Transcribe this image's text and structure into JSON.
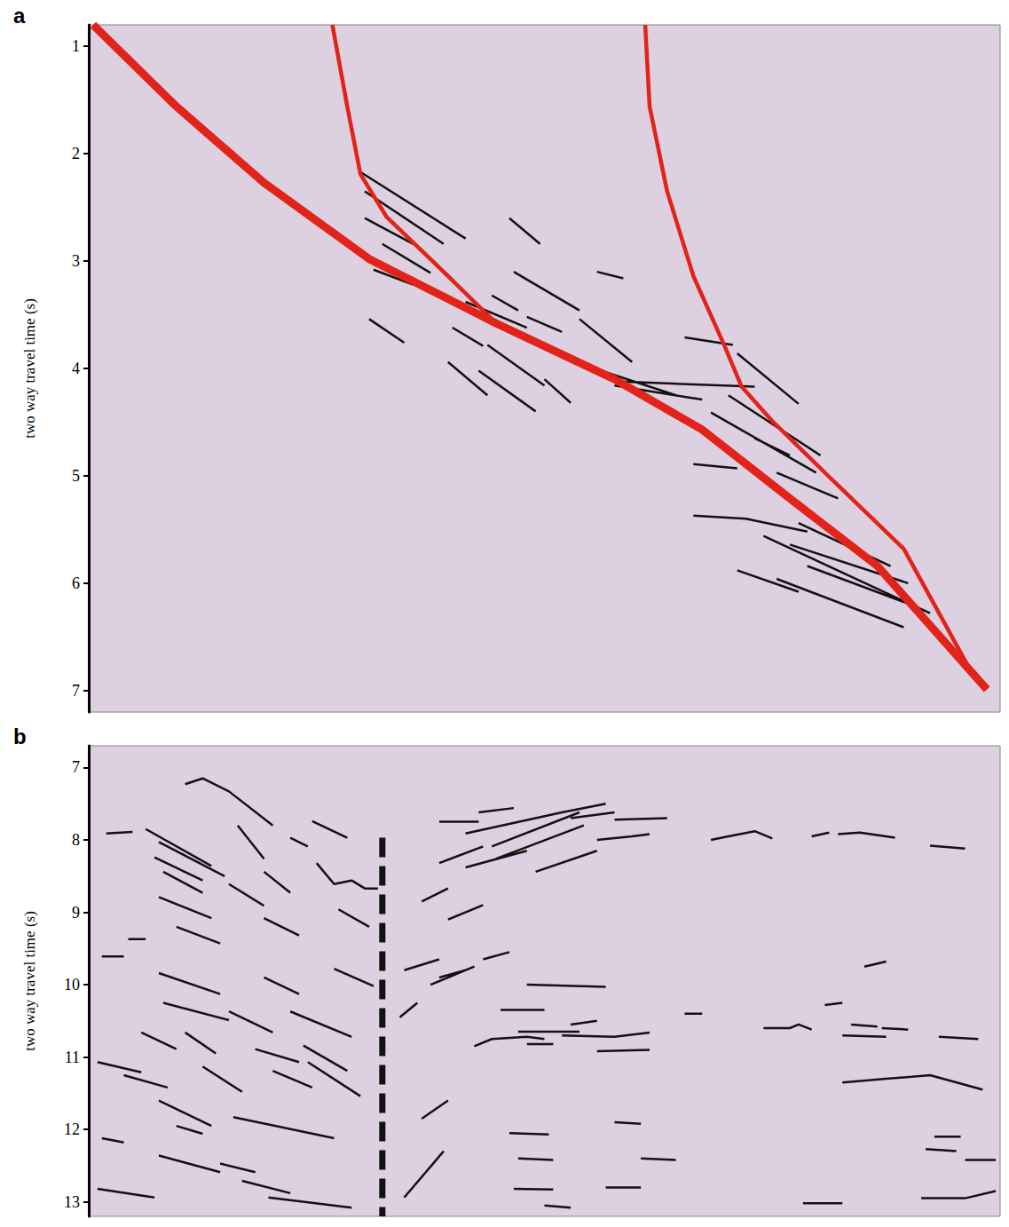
{
  "chart_data": [
    {
      "type": "line",
      "title": "a",
      "y_label": "two way travel time (s)",
      "xlim": [
        0,
        1040
      ],
      "ylim": [
        7.2,
        0.8
      ],
      "yticks": [
        1,
        2,
        3,
        4,
        5,
        6,
        7
      ],
      "grid": false,
      "tick_labels": "y",
      "series": [
        {
          "color": "#e2231a",
          "line_style": "solid",
          "x": [
            5,
            100,
            200,
            320,
            465,
            600,
            700,
            800,
            900,
            1025
          ],
          "values": [
            0.8,
            1.56,
            2.27,
            2.98,
            3.58,
            4.1,
            4.57,
            5.21,
            5.84,
            6.99
          ]
        },
        {
          "color": "#e2231a",
          "line_style": "solid",
          "x": [
            278,
            295,
            310,
            340,
            400,
            465,
            500
          ],
          "values": [
            0.8,
            1.56,
            2.19,
            2.59,
            3.06,
            3.58,
            3.7
          ]
        },
        {
          "color": "#e2231a",
          "line_style": "solid",
          "x": [
            635,
            640,
            660,
            690,
            725,
            745,
            780,
            850,
            930,
            1010
          ],
          "values": [
            0.8,
            1.56,
            2.35,
            3.14,
            3.78,
            4.17,
            4.49,
            5.05,
            5.68,
            6.87
          ]
        },
        {
          "color": "#111111",
          "line_style": "solid",
          "x": [
            310,
            430,
            null,
            315,
            405,
            null,
            315,
            370,
            null,
            335,
            390,
            null,
            325,
            370,
            null,
            480,
            515,
            null,
            580,
            610,
            null,
            485,
            560,
            null,
            460,
            490,
            null,
            320,
            360,
            null,
            415,
            450,
            null,
            430,
            500,
            null,
            500,
            540,
            null,
            560,
            620,
            null,
            410,
            455,
            null,
            445,
            510,
            null,
            455,
            520,
            null,
            520,
            550,
            null,
            540,
            670,
            null,
            600,
            700,
            null,
            680,
            735,
            null,
            600,
            760,
            null,
            740,
            810,
            null,
            730,
            835,
            null,
            710,
            830,
            null,
            690,
            740,
            null,
            760,
            800,
            null,
            785,
            855,
            null,
            690,
            750,
            820,
            null,
            810,
            915,
            null,
            770,
            960,
            null,
            800,
            935,
            null,
            820,
            945,
            null,
            740,
            810,
            null,
            785,
            930
          ],
          "values": [
            2.17,
            2.79,
            null,
            2.35,
            2.84,
            null,
            2.6,
            2.84,
            null,
            2.84,
            3.11,
            null,
            3.08,
            3.22,
            null,
            2.6,
            2.84,
            null,
            3.1,
            3.16,
            null,
            3.1,
            3.46,
            null,
            3.32,
            3.46,
            null,
            3.54,
            3.76,
            null,
            3.62,
            3.79,
            null,
            3.38,
            3.62,
            null,
            3.52,
            3.66,
            null,
            3.54,
            3.94,
            null,
            3.94,
            4.25,
            null,
            4.02,
            4.4,
            null,
            3.78,
            4.16,
            null,
            4.1,
            4.32,
            null,
            3.9,
            4.25,
            null,
            4.16,
            4.29,
            null,
            3.71,
            3.78,
            null,
            4.12,
            4.17,
            null,
            3.86,
            4.33,
            null,
            4.25,
            4.81,
            null,
            4.41,
            4.97,
            null,
            4.89,
            4.93,
            null,
            4.65,
            4.81,
            null,
            4.97,
            5.21,
            null,
            5.37,
            5.4,
            5.52,
            null,
            5.44,
            5.84,
            null,
            5.56,
            6.28,
            null,
            5.64,
            6.0,
            null,
            5.84,
            6.22,
            null,
            5.88,
            6.08,
            null,
            5.96,
            6.41
          ]
        }
      ]
    },
    {
      "type": "line",
      "title": "b",
      "y_label": "two way travel time (s)",
      "xlim": [
        0,
        1040
      ],
      "ylim": [
        13.2,
        6.7
      ],
      "yticks": [
        7,
        8,
        9,
        10,
        11,
        12,
        13
      ],
      "grid": false,
      "tick_labels": "y",
      "series": [
        {
          "color": "#111111",
          "line_style": "solid",
          "x": [
            110,
            130,
            160,
            210,
            null,
            20,
            50,
            null,
            65,
            140,
            null,
            80,
            155,
            null,
            75,
            130,
            null,
            85,
            130,
            null,
            80,
            140,
            null,
            170,
            200,
            null,
            230,
            250,
            null,
            255,
            295,
            null,
            260,
            280,
            300,
            315,
            330,
            null,
            200,
            230,
            null,
            160,
            200,
            null,
            100,
            150,
            null,
            200,
            240,
            null,
            285,
            320,
            null,
            45,
            65,
            null,
            15,
            40,
            null,
            80,
            150,
            null,
            200,
            240,
            null,
            280,
            325,
            null,
            85,
            160,
            null,
            160,
            210,
            null,
            230,
            300,
            null,
            60,
            100,
            null,
            110,
            145,
            null,
            190,
            240,
            null,
            245,
            295,
            null,
            10,
            60,
            null,
            40,
            90,
            null,
            130,
            175,
            null,
            210,
            255,
            null,
            250,
            310,
            null,
            80,
            140,
            null,
            100,
            130,
            null,
            165,
            280,
            null,
            15,
            40,
            null,
            80,
            150,
            null,
            150,
            190,
            null,
            175,
            230,
            null,
            205,
            300,
            null,
            10,
            75,
            null,
            360,
            405,
            null,
            400,
            445,
            null,
            445,
            485,
            null,
            430,
            540,
            null,
            460,
            560,
            null,
            400,
            450,
            null,
            465,
            565,
            null,
            430,
            500,
            null,
            510,
            580,
            null,
            540,
            590,
            null,
            550,
            600,
            null,
            600,
            660,
            null,
            580,
            620,
            640,
            null,
            710,
            730,
            760,
            780,
            null,
            825,
            845,
            null,
            855,
            880,
            920,
            null,
            960,
            1000,
            null,
            380,
            410,
            null,
            410,
            450,
            null,
            360,
            400,
            null,
            390,
            440,
            null,
            450,
            480,
            null,
            400,
            430,
            null,
            355,
            375,
            null,
            380,
            410,
            null,
            500,
            590,
            null,
            470,
            520,
            null,
            490,
            560,
            null,
            440,
            460,
            500,
            520,
            null,
            500,
            530,
            null,
            550,
            580,
            null,
            580,
            640,
            null,
            540,
            600,
            640,
            null,
            680,
            700,
            null,
            770,
            800,
            810,
            825,
            null,
            840,
            860,
            null,
            860,
            910,
            null,
            870,
            900,
            null,
            905,
            935,
            null,
            970,
            1015,
            null,
            885,
            910,
            null,
            860,
            910,
            960,
            1020,
            null,
            480,
            525,
            null,
            490,
            530,
            null,
            485,
            530,
            null,
            600,
            630,
            null,
            630,
            670,
            null,
            590,
            630,
            null,
            520,
            550,
            null,
            965,
            995,
            null,
            955,
            990,
            null,
            1000,
            1035,
            null,
            950,
            1000,
            1035,
            null,
            815,
            860
          ],
          "values": [
            7.23,
            7.15,
            7.33,
            7.8,
            null,
            7.91,
            7.89,
            null,
            7.85,
            8.36,
            null,
            8.03,
            8.5,
            null,
            8.24,
            8.56,
            null,
            8.44,
            8.73,
            null,
            8.79,
            9.08,
            null,
            7.8,
            8.26,
            null,
            7.97,
            8.09,
            null,
            7.74,
            7.97,
            null,
            8.32,
            8.61,
            8.56,
            8.67,
            8.67,
            null,
            8.44,
            8.73,
            null,
            8.61,
            8.91,
            null,
            9.2,
            9.43,
            null,
            9.08,
            9.32,
            null,
            8.96,
            9.2,
            null,
            9.37,
            9.37,
            null,
            9.61,
            9.61,
            null,
            9.84,
            10.13,
            null,
            9.9,
            10.13,
            null,
            9.78,
            10.02,
            null,
            10.25,
            10.49,
            null,
            10.37,
            10.66,
            null,
            10.37,
            10.72,
            null,
            10.66,
            10.89,
            null,
            10.66,
            10.95,
            null,
            10.89,
            11.07,
            null,
            10.84,
            11.19,
            null,
            11.07,
            11.21,
            null,
            11.25,
            11.42,
            null,
            11.13,
            11.48,
            null,
            11.19,
            11.42,
            null,
            11.07,
            11.54,
            null,
            11.6,
            11.95,
            null,
            11.95,
            12.06,
            null,
            11.83,
            12.12,
            null,
            12.12,
            12.18,
            null,
            12.36,
            12.59,
            null,
            12.47,
            12.59,
            null,
            12.71,
            12.88,
            null,
            12.94,
            13.08,
            null,
            12.82,
            12.94,
            null,
            12.94,
            12.3,
            null,
            7.75,
            7.75,
            null,
            7.62,
            7.56,
            null,
            7.91,
            7.62,
            null,
            8.09,
            7.62,
            null,
            8.32,
            8.09,
            null,
            8.26,
            7.8,
            null,
            8.38,
            8.15,
            null,
            8.44,
            8.15,
            null,
            7.62,
            7.5,
            null,
            7.7,
            7.62,
            null,
            7.72,
            7.7,
            null,
            8.0,
            7.95,
            7.92,
            null,
            8.0,
            7.95,
            7.88,
            7.98,
            null,
            7.95,
            7.9,
            null,
            7.92,
            7.9,
            7.97,
            null,
            8.08,
            8.12,
            null,
            8.85,
            8.67,
            null,
            9.1,
            8.9,
            null,
            9.8,
            9.65,
            null,
            10.0,
            9.75,
            null,
            9.65,
            9.55,
            null,
            9.9,
            9.8,
            null,
            10.45,
            10.25,
            null,
            11.85,
            11.6,
            null,
            10.0,
            10.03,
            null,
            10.35,
            10.35,
            null,
            10.65,
            10.65,
            null,
            10.85,
            10.75,
            10.72,
            10.75,
            null,
            10.82,
            10.82,
            null,
            10.55,
            10.5,
            null,
            10.92,
            10.9,
            null,
            10.7,
            10.72,
            10.66,
            null,
            10.4,
            10.4,
            null,
            10.6,
            10.6,
            10.55,
            10.62,
            null,
            10.28,
            10.25,
            null,
            10.7,
            10.72,
            null,
            10.55,
            10.58,
            null,
            10.6,
            10.62,
            null,
            10.72,
            10.75,
            null,
            9.75,
            9.68,
            null,
            11.35,
            11.3,
            11.25,
            11.45,
            null,
            12.05,
            12.07,
            null,
            12.4,
            12.42,
            null,
            12.82,
            12.83,
            null,
            11.9,
            11.92,
            null,
            12.4,
            12.42,
            null,
            12.8,
            12.8,
            null,
            13.05,
            13.08,
            null,
            12.1,
            12.1,
            null,
            12.27,
            12.3,
            null,
            12.42,
            12.42,
            null,
            12.95,
            12.95,
            12.85,
            null,
            13.02,
            13.02
          ]
        },
        {
          "color": "#111111",
          "line_style": "dashed",
          "x": [
            335,
            335
          ],
          "values": [
            7.97,
            13.2
          ]
        }
      ]
    }
  ]
}
